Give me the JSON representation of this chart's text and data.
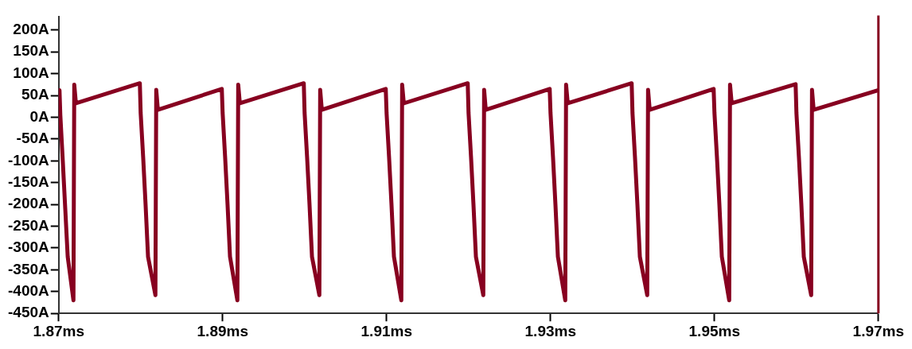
{
  "chart_data": {
    "type": "line",
    "line_style": "solid",
    "marker": "none",
    "grid": false,
    "legend": false,
    "xlim": [
      1.87,
      1.97
    ],
    "xticks": [
      {
        "value": 1.87,
        "label": "1.87ms"
      },
      {
        "value": 1.89,
        "label": "1.89ms"
      },
      {
        "value": 1.91,
        "label": "1.91ms"
      },
      {
        "value": 1.93,
        "label": "1.93ms"
      },
      {
        "value": 1.95,
        "label": "1.95ms"
      },
      {
        "value": 1.97,
        "label": "1.97ms"
      }
    ],
    "ylim": [
      -450,
      230
    ],
    "yticks": [
      {
        "value": -450,
        "label": "-450A"
      },
      {
        "value": -400,
        "label": "-400A"
      },
      {
        "value": -350,
        "label": "-350A"
      },
      {
        "value": -300,
        "label": "-300A"
      },
      {
        "value": -250,
        "label": "-250A"
      },
      {
        "value": -200,
        "label": "-200A"
      },
      {
        "value": -150,
        "label": "-150A"
      },
      {
        "value": -100,
        "label": "-100A"
      },
      {
        "value": -50,
        "label": "-50A"
      },
      {
        "value": 0,
        "label": "0A"
      },
      {
        "value": 50,
        "label": "50A"
      },
      {
        "value": 100,
        "label": "100A"
      },
      {
        "value": 150,
        "label": "150A"
      },
      {
        "value": 200,
        "label": "200A"
      }
    ],
    "ref_lines": [
      {
        "axis": "x",
        "value": 1.97,
        "color": "#870020"
      }
    ],
    "series": [
      {
        "color": "#870020",
        "x": [
          1.87,
          1.8701,
          1.8702,
          1.8705,
          1.8708,
          1.8711,
          1.8718,
          1.8719,
          1.8721,
          1.8799,
          1.88,
          1.8803,
          1.8806,
          1.8809,
          1.8818,
          1.8819,
          1.8821,
          1.8899,
          1.89,
          1.8903,
          1.8906,
          1.8909,
          1.8918,
          1.8919,
          1.8921,
          1.8999,
          1.9,
          1.9003,
          1.9006,
          1.9009,
          1.9018,
          1.9019,
          1.9021,
          1.9099,
          1.91,
          1.9103,
          1.9106,
          1.9109,
          1.9118,
          1.9119,
          1.9121,
          1.9199,
          1.92,
          1.9203,
          1.9206,
          1.9209,
          1.9218,
          1.9219,
          1.9221,
          1.9299,
          1.93,
          1.9303,
          1.9306,
          1.9309,
          1.9318,
          1.9319,
          1.9321,
          1.9399,
          1.94,
          1.9403,
          1.9406,
          1.9409,
          1.9418,
          1.9419,
          1.9421,
          1.9499,
          1.95,
          1.9503,
          1.9506,
          1.9509,
          1.9518,
          1.9519,
          1.9521,
          1.9599,
          1.96,
          1.9603,
          1.9606,
          1.9609,
          1.9618,
          1.9619,
          1.9621,
          1.97
        ],
        "values": [
          48,
          62,
          5,
          -100,
          -210,
          -320,
          -420,
          75,
          32,
          78,
          10,
          -90,
          -200,
          -320,
          -408,
          63,
          17,
          65,
          10,
          -90,
          -200,
          -320,
          -420,
          75,
          32,
          78,
          10,
          -90,
          -200,
          -320,
          -408,
          63,
          17,
          65,
          10,
          -90,
          -200,
          -320,
          -420,
          75,
          32,
          78,
          10,
          -90,
          -200,
          -320,
          -408,
          63,
          17,
          65,
          10,
          -90,
          -200,
          -320,
          -420,
          75,
          32,
          78,
          10,
          -90,
          -200,
          -320,
          -408,
          63,
          17,
          65,
          10,
          -90,
          -200,
          -320,
          -420,
          75,
          32,
          76,
          10,
          -90,
          -200,
          -320,
          -408,
          63,
          17,
          62
        ]
      }
    ]
  }
}
